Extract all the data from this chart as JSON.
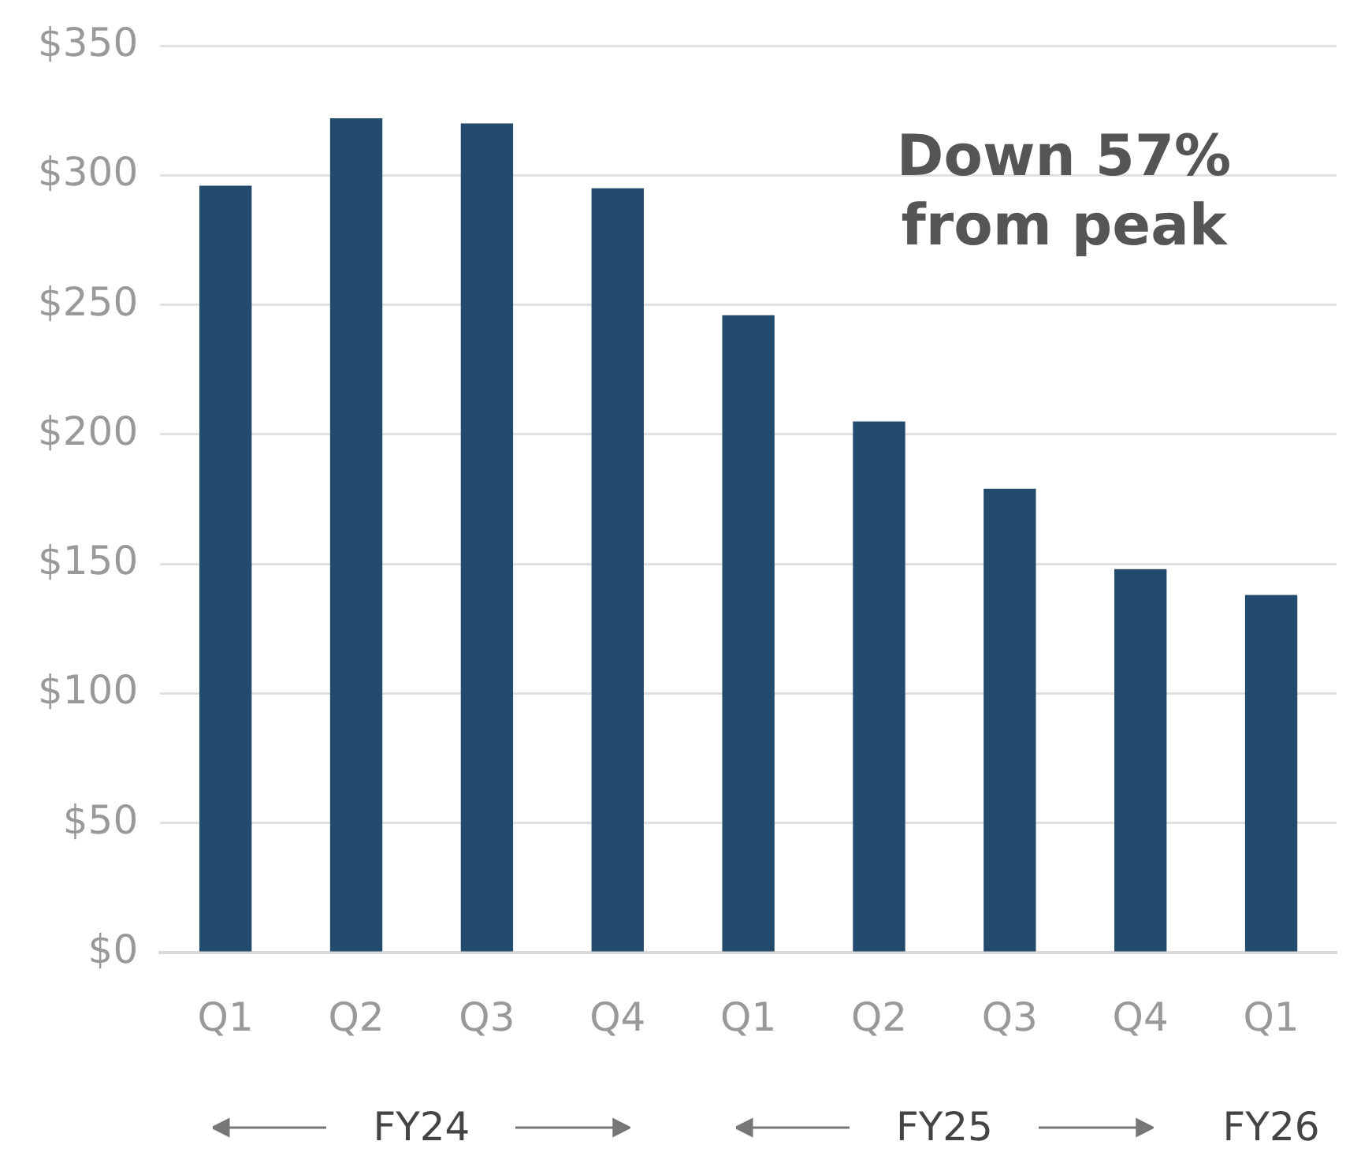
{
  "chart_data": {
    "type": "bar",
    "categories": [
      "Q1",
      "Q2",
      "Q3",
      "Q4",
      "Q1",
      "Q2",
      "Q3",
      "Q4",
      "Q1"
    ],
    "values": [
      296,
      322,
      320,
      295,
      246,
      205,
      179,
      148,
      138
    ],
    "color": "#234b6e",
    "ylim": [
      0,
      350
    ],
    "yticks": [
      {
        "value": 0,
        "label": "$0"
      },
      {
        "value": 50,
        "label": "$50"
      },
      {
        "value": 100,
        "label": "$100"
      },
      {
        "value": 150,
        "label": "$150"
      },
      {
        "value": 200,
        "label": "$200"
      },
      {
        "value": 250,
        "label": "$250"
      },
      {
        "value": 300,
        "label": "$300"
      },
      {
        "value": 350,
        "label": "$350"
      }
    ],
    "grid": "y",
    "legend": false,
    "annotations": [
      "Down 57% from peak",
      "FY24",
      "FY25",
      "FY26"
    ]
  }
}
